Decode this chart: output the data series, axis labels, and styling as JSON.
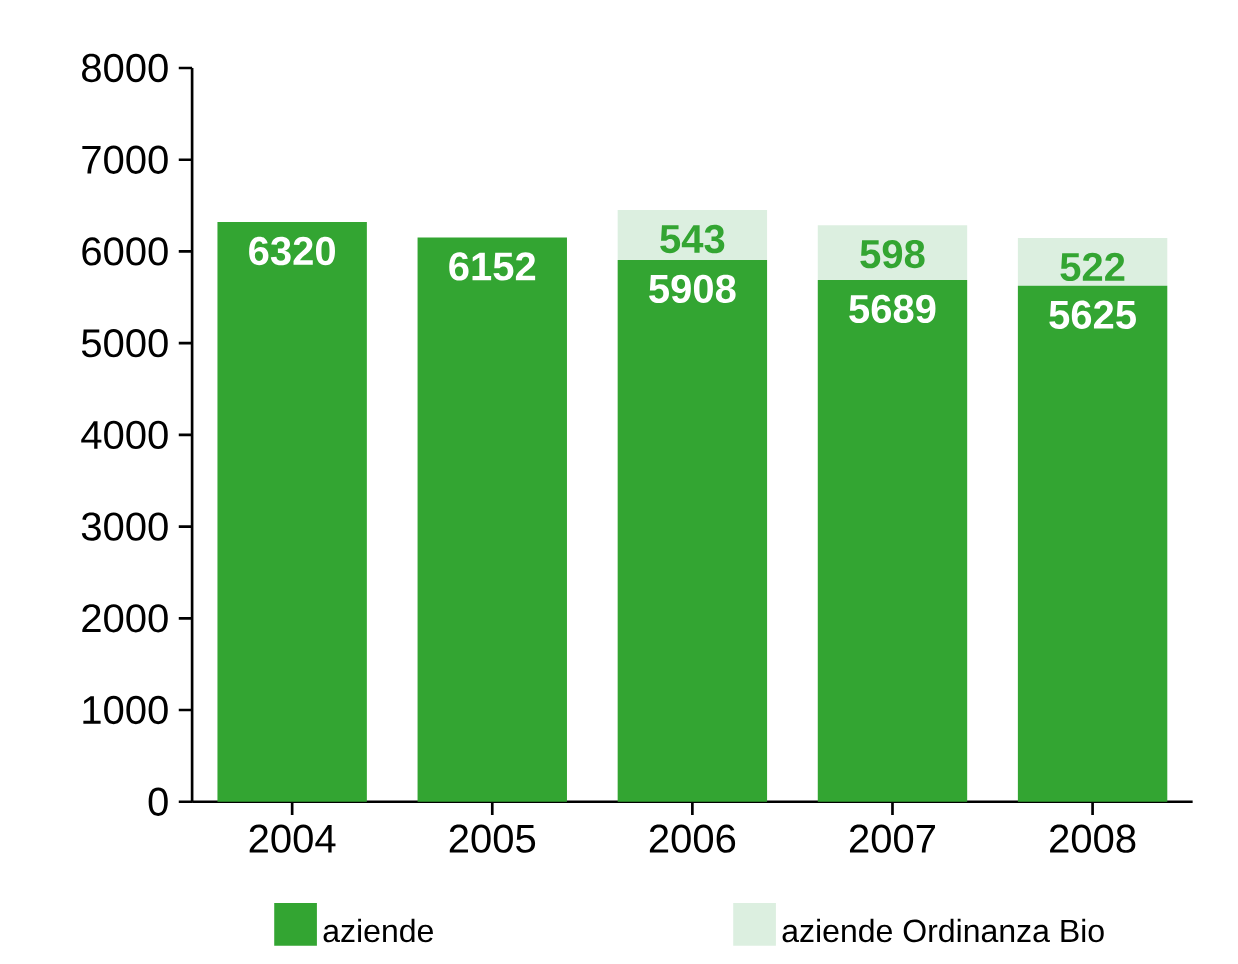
{
  "chart_data": {
    "type": "bar",
    "stacked": true,
    "categories": [
      "2004",
      "2005",
      "2006",
      "2007",
      "2008"
    ],
    "series": [
      {
        "name": "aziende",
        "color": "#33a532",
        "values": [
          6320,
          6152,
          5908,
          5689,
          5625
        ]
      },
      {
        "name": "aziende Ordinanza Bio",
        "color": "#dcefe0",
        "values": [
          null,
          null,
          543,
          598,
          522
        ]
      }
    ],
    "ylim": [
      0,
      8000
    ],
    "yticks": [
      0,
      1000,
      2000,
      3000,
      4000,
      5000,
      6000,
      7000,
      8000
    ],
    "data_labels": true,
    "legend": "bottom",
    "grid": false
  }
}
